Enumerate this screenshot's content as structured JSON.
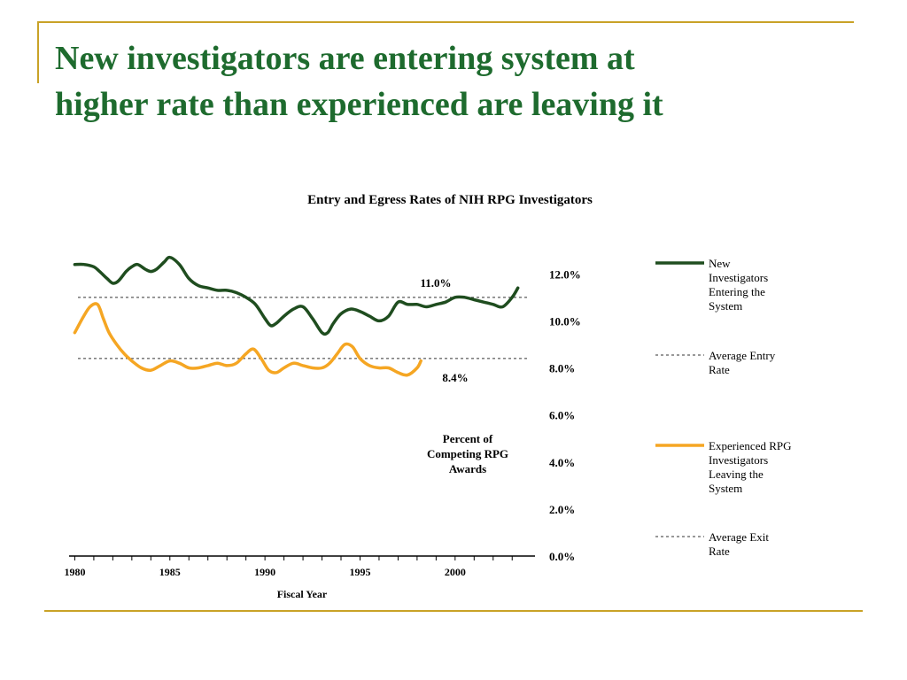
{
  "slide": {
    "title": "New investigators are entering system at\nhigher rate than experienced are leaving it"
  },
  "colors": {
    "accent": "#c9a227",
    "title": "#1e6b2e",
    "entry_line": "#1f4d1f",
    "exit_line": "#f5a623"
  },
  "chart_data": {
    "type": "line",
    "title": "Entry and Egress Rates of NIH RPG Investigators",
    "xlabel": "Fiscal Year",
    "ylabel": "Percent of\nCompeting RPG\nAwards",
    "xlim": [
      1979.7,
      2004.2
    ],
    "ylim": [
      0,
      12.5
    ],
    "x_ticks": [
      "1980",
      "1985",
      "1990",
      "1995",
      "2000"
    ],
    "y_ticks": [
      "12.0%",
      "10.0%",
      "8.0%",
      "6.0%",
      "4.0%",
      "2.0%",
      "0.0%"
    ],
    "grid": false,
    "legend_position": "right",
    "series": [
      {
        "name": "New Investigators Entering the System",
        "x": [
          1980,
          1980.5,
          1981,
          1981.3,
          1981.7,
          1982,
          1982.3,
          1982.7,
          1983,
          1983.3,
          1983.7,
          1984,
          1984.3,
          1984.7,
          1985,
          1985.5,
          1986,
          1986.5,
          1987,
          1987.5,
          1988,
          1988.5,
          1989,
          1989.5,
          1990,
          1990.3,
          1990.6,
          1991,
          1991.5,
          1992,
          1992.5,
          1993,
          1993.3,
          1993.6,
          1994,
          1994.5,
          1995,
          1995.5,
          1996,
          1996.5,
          1997,
          1997.5,
          1998,
          1998.5,
          1999,
          1999.5,
          2000,
          2000.5,
          2001,
          2001.5,
          2002,
          2002.5,
          2003,
          2003.3
        ],
        "values": [
          12.4,
          12.4,
          12.3,
          12.1,
          11.8,
          11.6,
          11.7,
          12.1,
          12.3,
          12.4,
          12.2,
          12.1,
          12.2,
          12.5,
          12.7,
          12.4,
          11.8,
          11.5,
          11.4,
          11.3,
          11.3,
          11.2,
          11.0,
          10.7,
          10.1,
          9.8,
          9.9,
          10.2,
          10.5,
          10.6,
          10.1,
          9.5,
          9.5,
          9.9,
          10.3,
          10.5,
          10.4,
          10.2,
          10.0,
          10.2,
          10.8,
          10.7,
          10.7,
          10.6,
          10.7,
          10.8,
          11.0,
          11.0,
          10.9,
          10.8,
          10.7,
          10.6,
          11.0,
          11.4
        ]
      },
      {
        "name": "Experienced RPG Investigators Leaving the System",
        "x": [
          1980,
          1980.4,
          1980.8,
          1981.2,
          1981.5,
          1981.8,
          1982.2,
          1982.6,
          1983,
          1983.5,
          1984,
          1984.5,
          1985,
          1985.5,
          1986,
          1986.5,
          1987,
          1987.5,
          1988,
          1988.5,
          1989,
          1989.4,
          1989.8,
          1990.2,
          1990.6,
          1991,
          1991.5,
          1992,
          1992.5,
          1993,
          1993.4,
          1993.8,
          1994.2,
          1994.6,
          1995,
          1995.5,
          1996,
          1996.5,
          1997,
          1997.5,
          1998,
          1998.2
        ],
        "values": [
          9.5,
          10.1,
          10.6,
          10.7,
          10.1,
          9.5,
          9.0,
          8.6,
          8.3,
          8.0,
          7.9,
          8.1,
          8.3,
          8.2,
          8.0,
          8.0,
          8.1,
          8.2,
          8.1,
          8.2,
          8.6,
          8.8,
          8.4,
          7.9,
          7.8,
          8.0,
          8.2,
          8.1,
          8.0,
          8.0,
          8.2,
          8.6,
          9.0,
          8.9,
          8.4,
          8.1,
          8.0,
          8.0,
          7.8,
          7.7,
          8.0,
          8.3
        ]
      }
    ],
    "reference_lines": [
      {
        "name": "Average Entry Rate",
        "value": 11.0,
        "label": "11.0%"
      },
      {
        "name": "Average Exit Rate",
        "value": 8.4,
        "label": "8.4%"
      }
    ],
    "legend": [
      {
        "label": "New\nInvestigators\nEntering the\nSystem",
        "style": "solid-dark"
      },
      {
        "label": "Average Entry\nRate",
        "style": "dotted"
      },
      {
        "label": "Experienced RPG\nInvestigators\nLeaving the\nSystem",
        "style": "solid-orange"
      },
      {
        "label": "Average Exit\nRate",
        "style": "dotted"
      }
    ]
  }
}
